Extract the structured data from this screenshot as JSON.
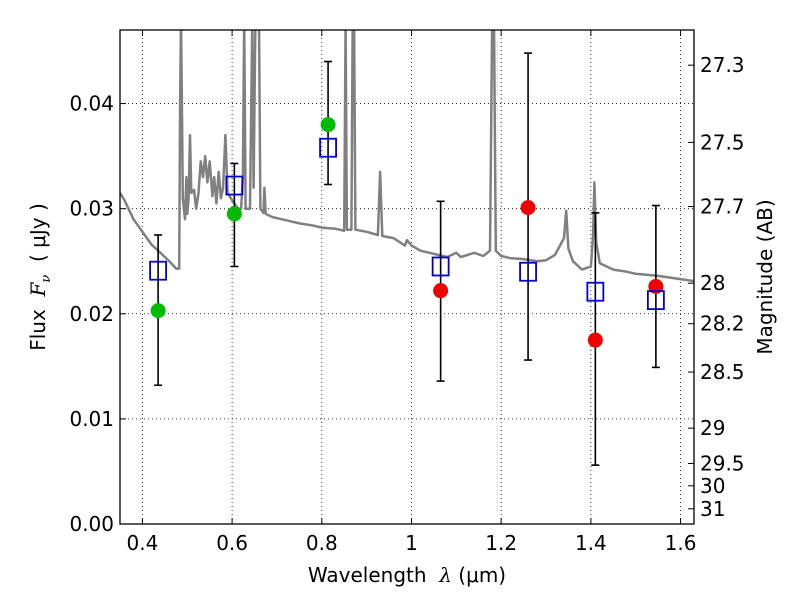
{
  "chart_data": {
    "type": "scatter",
    "title": "",
    "xlabel": {
      "prefix": "Wavelength  ",
      "symbol": "λ",
      "unit": " (μm)"
    },
    "ylabel": {
      "prefix": "Flux  ",
      "symbol": "F",
      "subscript": "ν",
      "unit": "  ( μJy )"
    },
    "ylabel_right": "Magnitude (AB)",
    "xlim": [
      0.35,
      1.63
    ],
    "ylim": [
      0.0,
      0.047
    ],
    "grid": true,
    "x_ticks": [
      {
        "value": 0.4,
        "label": "0.4"
      },
      {
        "value": 0.6,
        "label": "0.6"
      },
      {
        "value": 0.8,
        "label": "0.8"
      },
      {
        "value": 1.0,
        "label": "1"
      },
      {
        "value": 1.2,
        "label": "1.2"
      },
      {
        "value": 1.4,
        "label": "1.4"
      },
      {
        "value": 1.6,
        "label": "1.6"
      }
    ],
    "y_ticks": [
      {
        "value": 0.0,
        "label": "0.00"
      },
      {
        "value": 0.01,
        "label": "0.01"
      },
      {
        "value": 0.02,
        "label": "0.02"
      },
      {
        "value": 0.03,
        "label": "0.03"
      },
      {
        "value": 0.04,
        "label": "0.04"
      }
    ],
    "mag_ticks": [
      {
        "value": 27.3,
        "label": "27.3"
      },
      {
        "value": 27.5,
        "label": "27.5"
      },
      {
        "value": 27.7,
        "label": "27.7"
      },
      {
        "value": 28.0,
        "label": "28"
      },
      {
        "value": 28.2,
        "label": "28.2"
      },
      {
        "value": 28.5,
        "label": "28.5"
      },
      {
        "value": 29.0,
        "label": "29"
      },
      {
        "value": 29.5,
        "label": "29.5"
      },
      {
        "value": 30.0,
        "label": "30"
      },
      {
        "value": 31.0,
        "label": "31"
      }
    ],
    "colors": {
      "model_line": "#808080",
      "errorbar": "#000000",
      "green": "#00bb00",
      "red": "#ee0000",
      "model_box": "#0000cc"
    },
    "observed": [
      {
        "x": 0.435,
        "y": 0.0203,
        "err_low": 0.0132,
        "err_high": 0.0275,
        "color": "green"
      },
      {
        "x": 0.605,
        "y": 0.0295,
        "err_low": 0.0245,
        "err_high": 0.0343,
        "color": "green"
      },
      {
        "x": 0.814,
        "y": 0.038,
        "err_low": 0.0323,
        "err_high": 0.044,
        "color": "green"
      },
      {
        "x": 1.065,
        "y": 0.0222,
        "err_low": 0.0136,
        "err_high": 0.0307,
        "color": "red"
      },
      {
        "x": 1.26,
        "y": 0.0301,
        "err_low": 0.0156,
        "err_high": 0.0448,
        "color": "red"
      },
      {
        "x": 1.41,
        "y": 0.0175,
        "err_low": 0.0056,
        "err_high": 0.0296,
        "color": "red"
      },
      {
        "x": 1.545,
        "y": 0.0226,
        "err_low": 0.0149,
        "err_high": 0.0303,
        "color": "red"
      }
    ],
    "model_photometry": [
      {
        "x": 0.435,
        "y": 0.0241
      },
      {
        "x": 0.605,
        "y": 0.0322
      },
      {
        "x": 0.814,
        "y": 0.0358
      },
      {
        "x": 1.065,
        "y": 0.0245
      },
      {
        "x": 1.26,
        "y": 0.024
      },
      {
        "x": 1.41,
        "y": 0.0221
      },
      {
        "x": 1.545,
        "y": 0.0213
      }
    ],
    "model_spectrum": [
      [
        0.35,
        0.0315
      ],
      [
        0.36,
        0.0308
      ],
      [
        0.38,
        0.029
      ],
      [
        0.4,
        0.0278
      ],
      [
        0.42,
        0.0266
      ],
      [
        0.44,
        0.0258
      ],
      [
        0.46,
        0.025
      ],
      [
        0.475,
        0.0243
      ],
      [
        0.482,
        0.0243
      ],
      [
        0.484,
        0.04
      ],
      [
        0.486,
        0.048
      ],
      [
        0.488,
        0.04
      ],
      [
        0.49,
        0.031
      ],
      [
        0.495,
        0.029
      ],
      [
        0.498,
        0.033
      ],
      [
        0.5,
        0.0295
      ],
      [
        0.503,
        0.031
      ],
      [
        0.506,
        0.037
      ],
      [
        0.509,
        0.0315
      ],
      [
        0.515,
        0.0318
      ],
      [
        0.52,
        0.03
      ],
      [
        0.525,
        0.0315
      ],
      [
        0.53,
        0.0345
      ],
      [
        0.535,
        0.033
      ],
      [
        0.54,
        0.035
      ],
      [
        0.545,
        0.0325
      ],
      [
        0.55,
        0.0345
      ],
      [
        0.556,
        0.0312
      ],
      [
        0.56,
        0.033
      ],
      [
        0.565,
        0.0305
      ],
      [
        0.57,
        0.0335
      ],
      [
        0.575,
        0.031
      ],
      [
        0.58,
        0.032
      ],
      [
        0.585,
        0.037
      ],
      [
        0.59,
        0.0315
      ],
      [
        0.6,
        0.0308
      ],
      [
        0.61,
        0.0302
      ],
      [
        0.615,
        0.03
      ],
      [
        0.62,
        0.03
      ],
      [
        0.624,
        0.033
      ],
      [
        0.627,
        0.048
      ],
      [
        0.63,
        0.03
      ],
      [
        0.635,
        0.03
      ],
      [
        0.64,
        0.03
      ],
      [
        0.645,
        0.048
      ],
      [
        0.648,
        0.032
      ],
      [
        0.652,
        0.048
      ],
      [
        0.655,
        0.048
      ],
      [
        0.66,
        0.048
      ],
      [
        0.663,
        0.03
      ],
      [
        0.67,
        0.0296
      ],
      [
        0.672,
        0.032
      ],
      [
        0.675,
        0.0295
      ],
      [
        0.69,
        0.0292
      ],
      [
        0.72,
        0.0289
      ],
      [
        0.75,
        0.0286
      ],
      [
        0.78,
        0.0284
      ],
      [
        0.8,
        0.0282
      ],
      [
        0.83,
        0.0281
      ],
      [
        0.85,
        0.0279
      ],
      [
        0.853,
        0.048
      ],
      [
        0.856,
        0.028
      ],
      [
        0.866,
        0.028
      ],
      [
        0.869,
        0.048
      ],
      [
        0.872,
        0.048
      ],
      [
        0.875,
        0.028
      ],
      [
        0.9,
        0.0278
      ],
      [
        0.925,
        0.0275
      ],
      [
        0.93,
        0.0335
      ],
      [
        0.935,
        0.0274
      ],
      [
        0.96,
        0.0272
      ],
      [
        0.985,
        0.0265
      ],
      [
        0.99,
        0.027
      ],
      [
        1.0,
        0.0265
      ],
      [
        1.02,
        0.026
      ],
      [
        1.05,
        0.0257
      ],
      [
        1.08,
        0.0254
      ],
      [
        1.1,
        0.0258
      ],
      [
        1.11,
        0.0254
      ],
      [
        1.14,
        0.0258
      ],
      [
        1.16,
        0.0255
      ],
      [
        1.175,
        0.026
      ],
      [
        1.18,
        0.048
      ],
      [
        1.184,
        0.048
      ],
      [
        1.188,
        0.026
      ],
      [
        1.2,
        0.0255
      ],
      [
        1.22,
        0.0253
      ],
      [
        1.25,
        0.0252
      ],
      [
        1.28,
        0.025
      ],
      [
        1.3,
        0.0251
      ],
      [
        1.32,
        0.0256
      ],
      [
        1.34,
        0.0272
      ],
      [
        1.345,
        0.0298
      ],
      [
        1.35,
        0.0262
      ],
      [
        1.36,
        0.025
      ],
      [
        1.38,
        0.0242
      ],
      [
        1.4,
        0.0245
      ],
      [
        1.405,
        0.0275
      ],
      [
        1.408,
        0.0325
      ],
      [
        1.412,
        0.0268
      ],
      [
        1.42,
        0.0248
      ],
      [
        1.45,
        0.0242
      ],
      [
        1.48,
        0.024
      ],
      [
        1.5,
        0.0238
      ],
      [
        1.55,
        0.0236
      ],
      [
        1.6,
        0.0233
      ],
      [
        1.63,
        0.0231
      ]
    ]
  }
}
